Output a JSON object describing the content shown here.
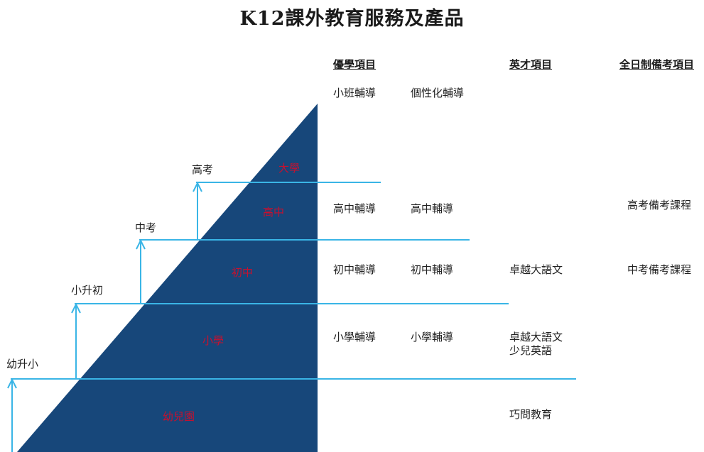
{
  "title": "K12課外教育服務及產品",
  "colors": {
    "triangle": "#17477a",
    "line": "#3ab5e6",
    "level_text": "#c8102e"
  },
  "columns": [
    "優學項目",
    "英才項目",
    "全日制備考項目"
  ],
  "levels": [
    "大學",
    "高中",
    "初中",
    "小學",
    "幼兒園"
  ],
  "transitions": [
    "高考",
    "中考",
    "小升初",
    "幼升小"
  ],
  "products": {
    "top": [
      "小班輔導",
      "個性化輔導"
    ],
    "high": [
      "高中輔導",
      "高中輔導",
      "高考備考課程"
    ],
    "middle": [
      "初中輔導",
      "初中輔導",
      "卓越大語文",
      "中考備考課程"
    ],
    "primary": [
      "小學輔導",
      "小學輔導",
      "卓越大語文\n少兒英語"
    ],
    "kindergarten": [
      "巧問教育"
    ]
  }
}
